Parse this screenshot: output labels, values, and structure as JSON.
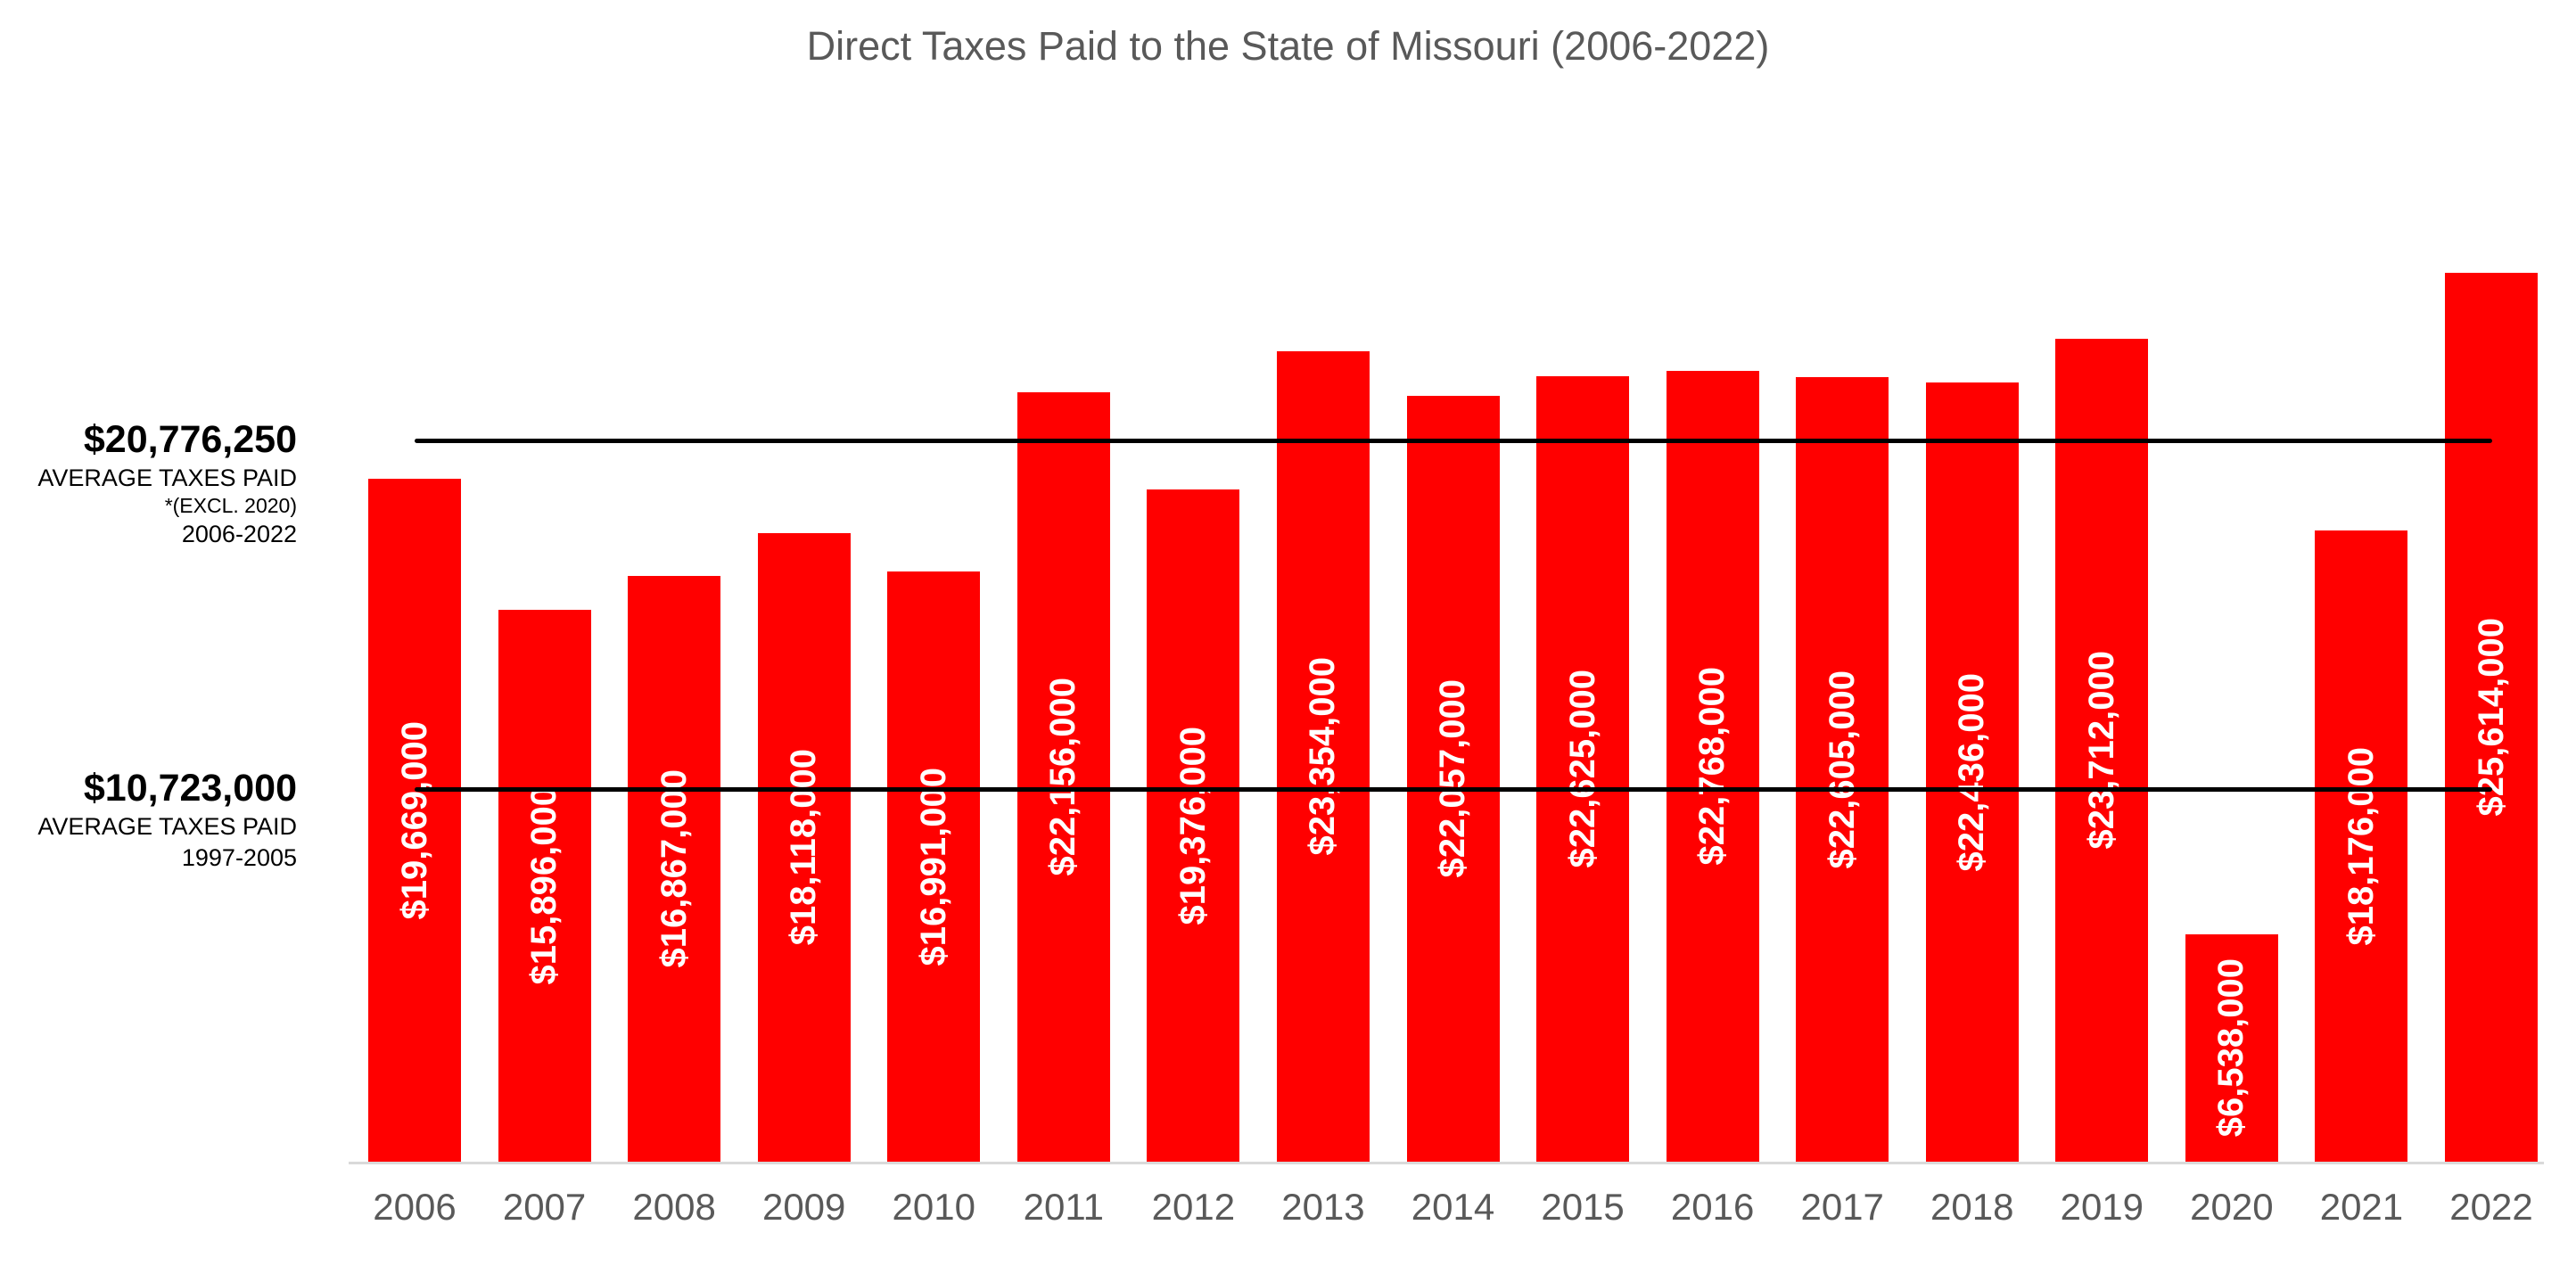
{
  "chart_data": {
    "type": "bar",
    "title": "Direct Taxes Paid to the State of Missouri (2006-2022)",
    "categories": [
      "2006",
      "2007",
      "2008",
      "2009",
      "2010",
      "2011",
      "2012",
      "2013",
      "2014",
      "2015",
      "2016",
      "2017",
      "2018",
      "2019",
      "2020",
      "2021",
      "2022"
    ],
    "values": [
      19669000,
      15896000,
      16867000,
      18118000,
      16991000,
      22156000,
      19376000,
      23354000,
      22057000,
      22625000,
      22768000,
      22605000,
      22436000,
      23712000,
      6538000,
      18176000,
      25614000
    ],
    "data_labels": [
      "$19,669,000",
      "$15,896,000",
      "$16,867,000",
      "$18,118,000",
      "$16,991,000",
      "$22,156,000",
      "$19,376,000",
      "$23,354,000",
      "$22,057,000",
      "$22,625,000",
      "$22,768,000",
      "$22,605,000",
      "$22,436,000",
      "$23,712,000",
      "$6,538,000",
      "$18,176,000",
      "$25,614,000"
    ],
    "xlabel": "",
    "ylabel": "",
    "ylim": [
      0,
      26200000
    ],
    "grid": "off",
    "legend": "none",
    "bar_color": "#FF0000",
    "data_label_color": "#FFFFFF",
    "axis_text_color": "#595959",
    "axis_line_color": "#D9D9D9",
    "reference_lines": [
      {
        "value": 20776250,
        "color": "#000000",
        "amount": "$20,776,250",
        "sub_labels": [
          "AVERAGE TAXES PAID",
          "*(EXCL. 2020)",
          "2006-2022"
        ]
      },
      {
        "value": 10723000,
        "color": "#000000",
        "amount": "$10,723,000",
        "sub_labels": [
          "AVERAGE TAXES PAID",
          "1997-2005"
        ]
      }
    ]
  }
}
